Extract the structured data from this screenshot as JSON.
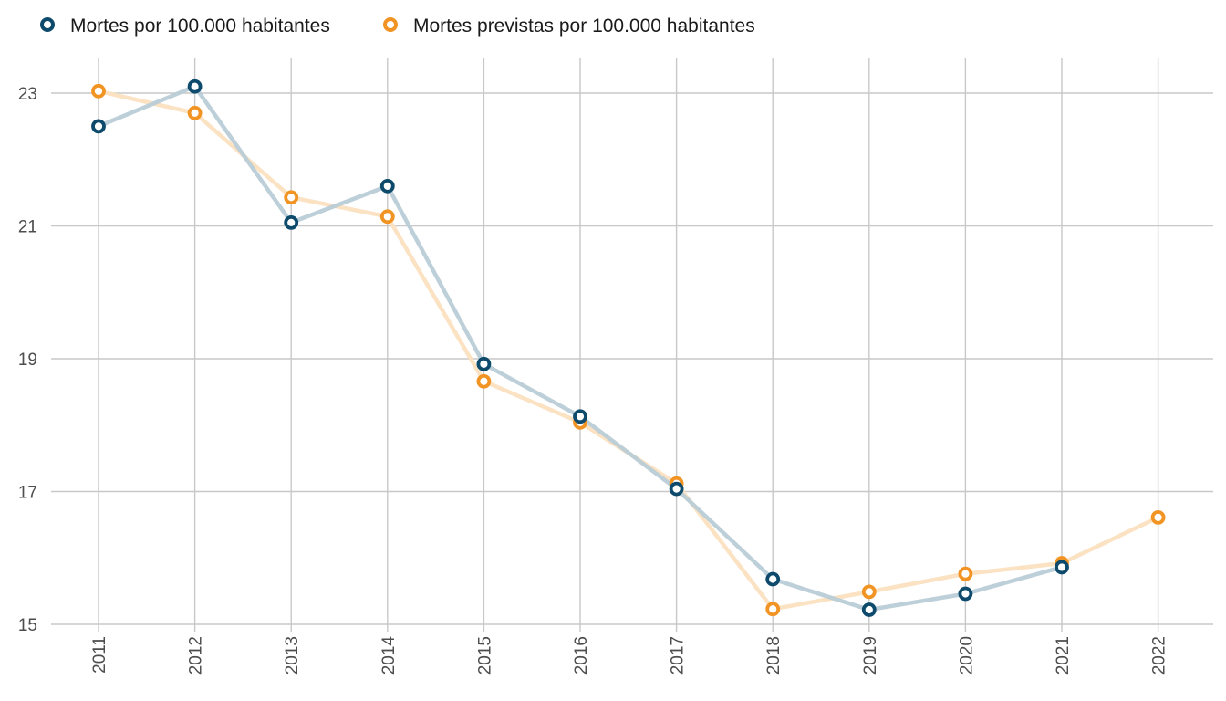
{
  "chart_data": {
    "type": "line",
    "title": "",
    "xlabel": "",
    "ylabel": "",
    "x": [
      "2011",
      "2012",
      "2013",
      "2014",
      "2015",
      "2016",
      "2017",
      "2018",
      "2019",
      "2020",
      "2021",
      "2022"
    ],
    "ylim": [
      15,
      23.5
    ],
    "yticks": [
      15,
      17,
      19,
      21,
      23
    ],
    "grid": true,
    "legend_position": "top-left",
    "series": [
      {
        "name": "Mortes por 100.000 habitantes",
        "color": "#0d4a6b",
        "line_color": "#b9ccd6",
        "values": [
          22.5,
          23.1,
          21.05,
          21.6,
          18.92,
          18.13,
          17.04,
          15.68,
          15.22,
          15.46,
          15.86,
          null
        ]
      },
      {
        "name": "Mortes previstas por 100.000 habitantes",
        "color": "#f29423",
        "line_color": "#fbe0c0",
        "values": [
          23.03,
          22.7,
          21.43,
          21.14,
          18.66,
          18.04,
          17.12,
          15.23,
          15.49,
          15.76,
          15.92,
          16.61
        ]
      }
    ]
  }
}
